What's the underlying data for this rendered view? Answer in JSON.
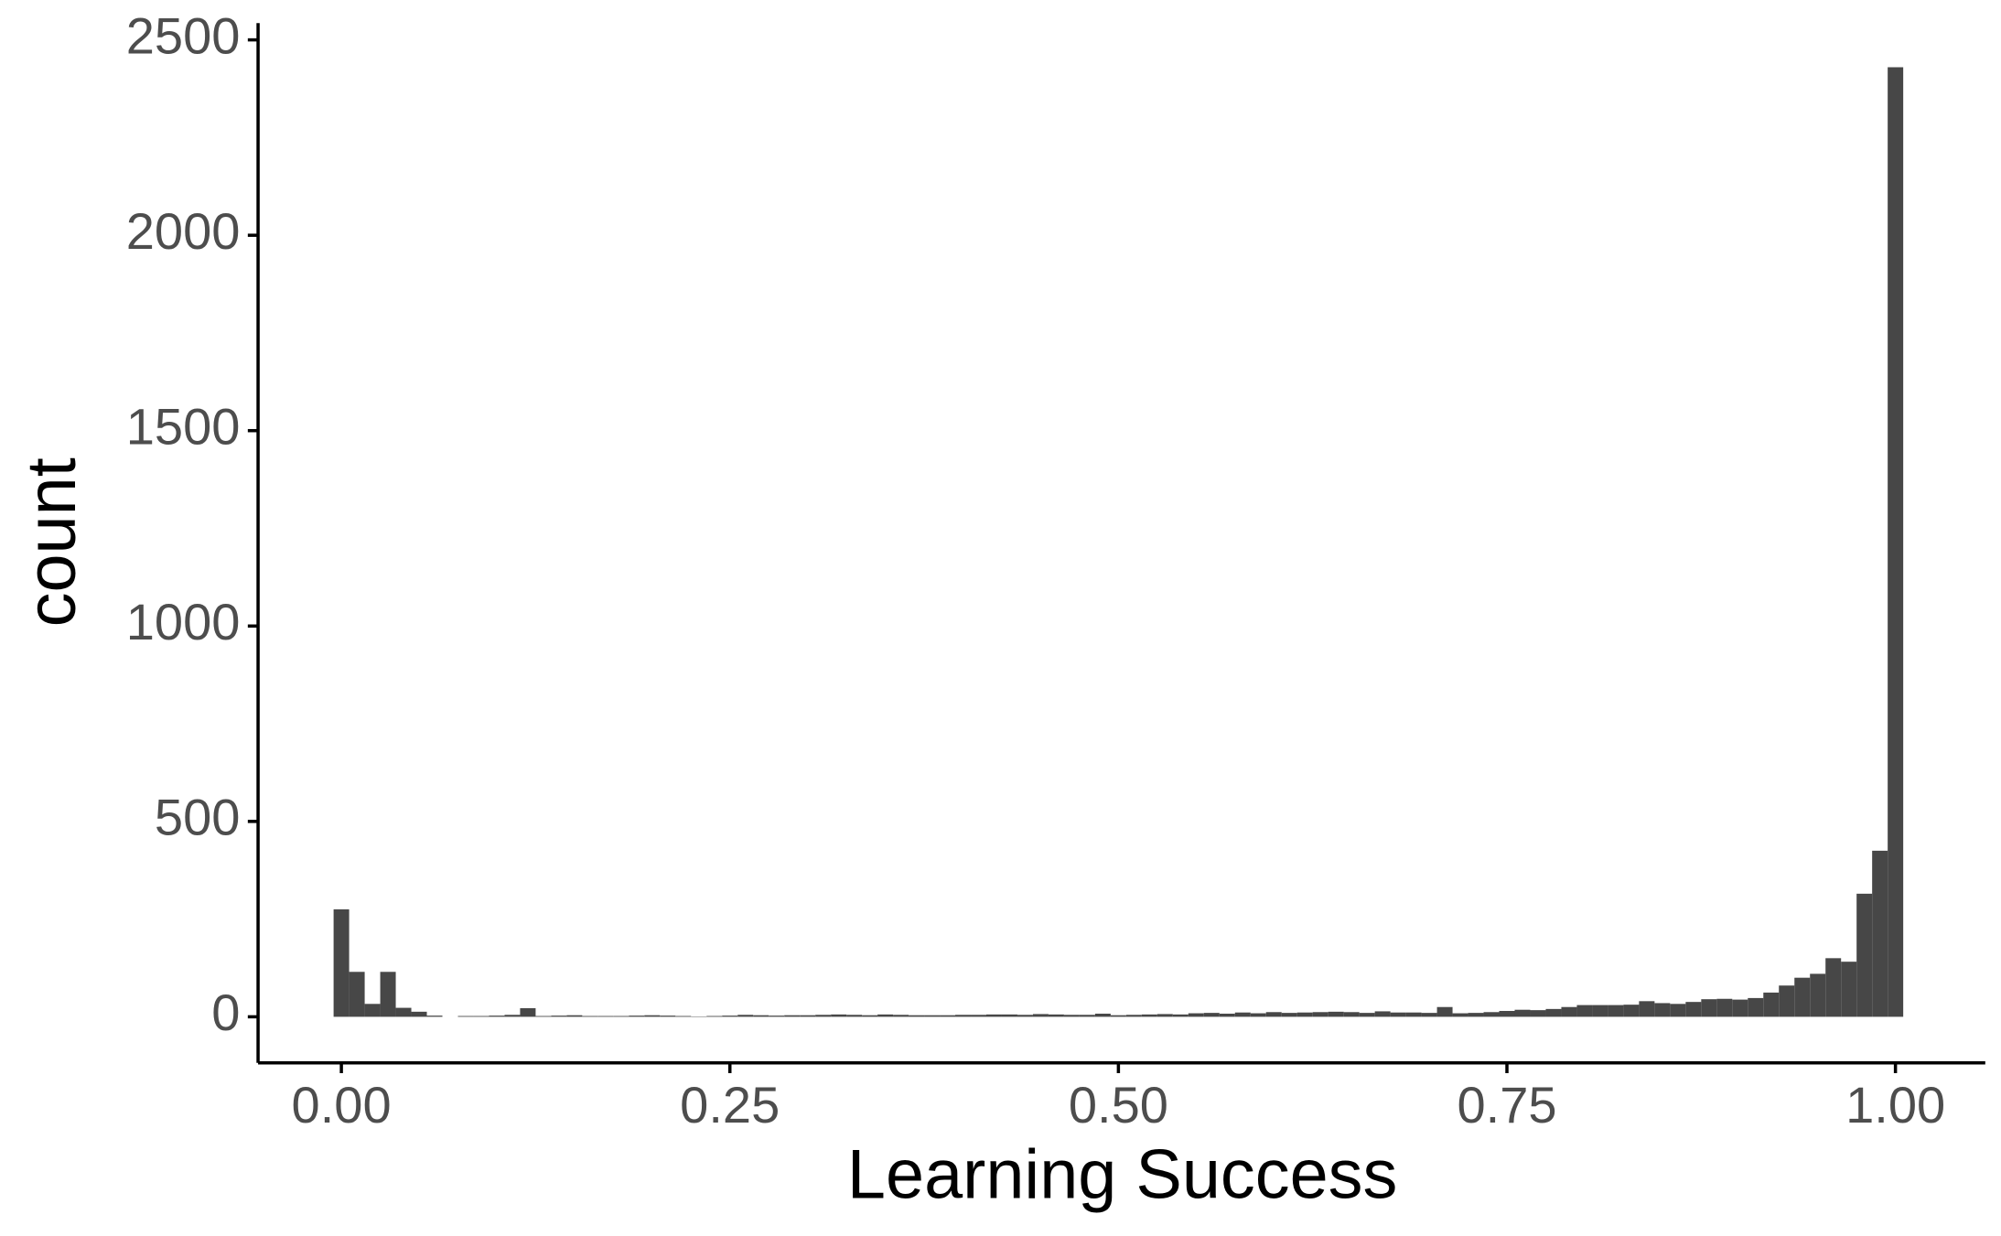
{
  "chart_data": {
    "type": "histogram",
    "x_label": "Learning Success",
    "y_label": "count",
    "color": "#474747",
    "bins": [
      -0.005,
      0.005,
      0.015,
      0.025,
      0.035,
      0.045,
      0.055,
      0.065,
      0.075,
      0.085,
      0.095,
      0.105,
      0.115,
      0.125,
      0.135,
      0.145,
      0.155,
      0.165,
      0.175,
      0.185,
      0.195,
      0.205,
      0.215,
      0.225,
      0.235,
      0.245,
      0.255,
      0.265,
      0.275,
      0.285,
      0.295,
      0.305,
      0.315,
      0.325,
      0.335,
      0.345,
      0.355,
      0.365,
      0.375,
      0.385,
      0.395,
      0.405,
      0.415,
      0.425,
      0.435,
      0.445,
      0.455,
      0.465,
      0.475,
      0.485,
      0.495,
      0.505,
      0.515,
      0.525,
      0.535,
      0.545,
      0.555,
      0.565,
      0.575,
      0.585,
      0.595,
      0.605,
      0.615,
      0.625,
      0.635,
      0.645,
      0.655,
      0.665,
      0.675,
      0.685,
      0.695,
      0.705,
      0.715,
      0.725,
      0.735,
      0.745,
      0.755,
      0.765,
      0.775,
      0.785,
      0.795,
      0.805,
      0.815,
      0.825,
      0.835,
      0.845,
      0.855,
      0.865,
      0.875,
      0.885,
      0.895,
      0.905,
      0.915,
      0.925,
      0.935,
      0.945,
      0.955,
      0.965,
      0.975,
      0.985,
      0.995,
      1.005
    ],
    "values": [
      275,
      115,
      33,
      115,
      23,
      13,
      3,
      0,
      2,
      2,
      3,
      5,
      22,
      2,
      3,
      4,
      2,
      2,
      2,
      3,
      4,
      3,
      2,
      1,
      2,
      3,
      5,
      4,
      3,
      4,
      4,
      5,
      6,
      5,
      4,
      6,
      5,
      4,
      4,
      4,
      5,
      5,
      6,
      6,
      5,
      7,
      6,
      5,
      5,
      8,
      4,
      5,
      6,
      7,
      6,
      9,
      10,
      8,
      11,
      9,
      12,
      10,
      11,
      12,
      13,
      12,
      10,
      14,
      11,
      11,
      10,
      25,
      9,
      10,
      12,
      15,
      18,
      17,
      20,
      25,
      30,
      30,
      30,
      31,
      40,
      35,
      33,
      38,
      45,
      46,
      44,
      48,
      62,
      80,
      100,
      110,
      150,
      141,
      315,
      425,
      2430
    ],
    "xlim": [
      -0.0536,
      1.0578
    ],
    "ylim": [
      -118,
      2543
    ],
    "xticks": [
      {
        "value": 0,
        "label": "0.00"
      },
      {
        "value": 0.25,
        "label": "0.25"
      },
      {
        "value": 0.5,
        "label": "0.50"
      },
      {
        "value": 0.75,
        "label": "0.75"
      },
      {
        "value": 1,
        "label": "1.00"
      }
    ],
    "yticks": [
      0,
      500,
      1000,
      1500,
      2000,
      2500
    ]
  }
}
